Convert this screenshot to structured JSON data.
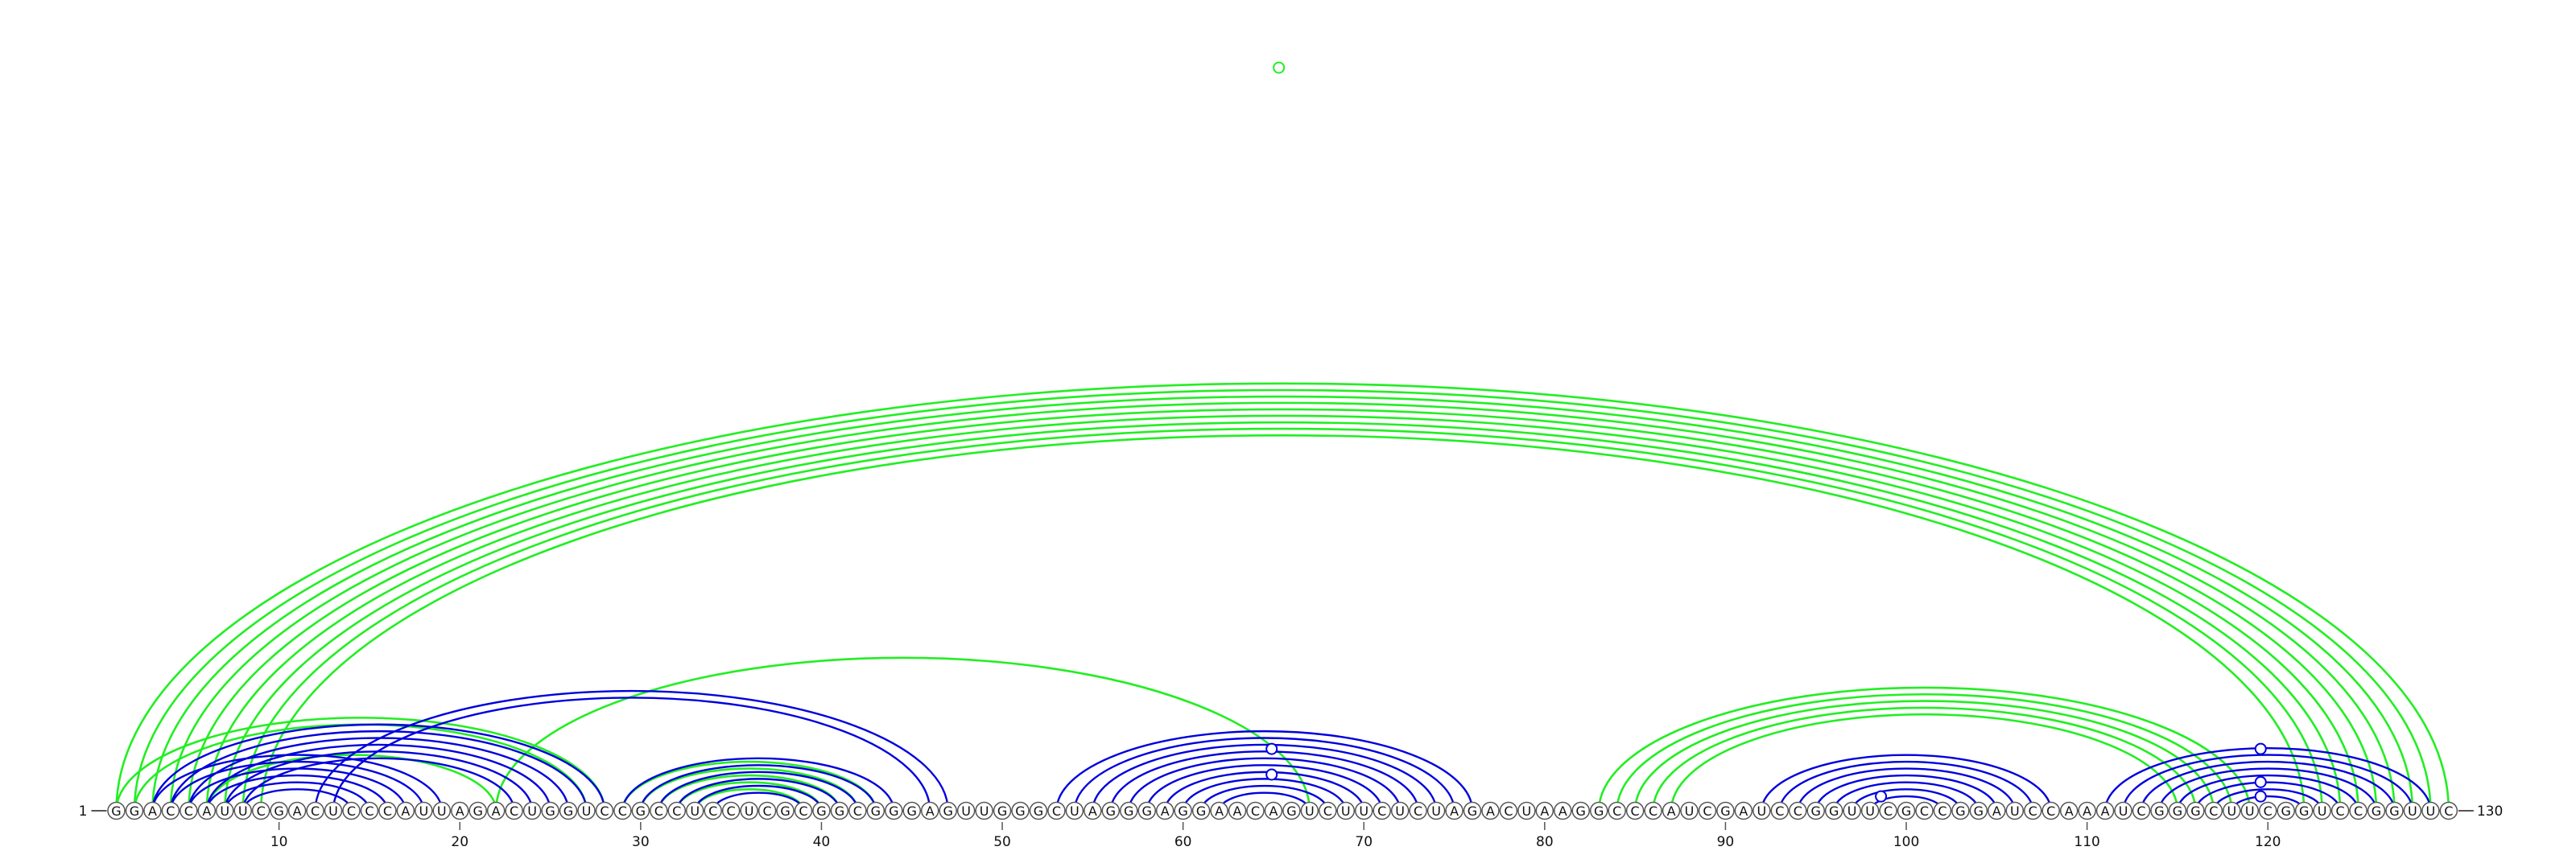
{
  "sequence": "GGACCAUUCGACUCCCAUUAGACUGGUCCGCCUCCUCGCGGCGGGAGUUGGGCUAGGGAGGAACAGUCUUCUCUAGACUAAGGCCCAUCGAUCCGGUUCGCCGGAUCCAAAUCGGGCUUCGGUCCGGUUC",
  "start_label": "1",
  "end_label": "130",
  "ticks": [
    "10",
    "20",
    "30",
    "40",
    "50",
    "60",
    "70",
    "80",
    "90",
    "100",
    "110",
    "120"
  ],
  "colors": {
    "blue": "#0000dd",
    "green": "#22ee22",
    "node_stroke": "#555555"
  },
  "arcs_blue": [
    [
      3,
      19
    ],
    [
      4,
      18
    ],
    [
      5,
      17
    ],
    [
      6,
      16
    ],
    [
      7,
      15
    ],
    [
      8,
      14
    ],
    [
      3,
      28
    ],
    [
      4,
      27
    ],
    [
      5,
      26
    ],
    [
      6,
      25
    ],
    [
      7,
      24
    ],
    [
      8,
      23
    ],
    [
      12,
      47
    ],
    [
      13,
      46
    ],
    [
      29,
      44
    ],
    [
      30,
      43
    ],
    [
      31,
      42
    ],
    [
      32,
      41
    ],
    [
      33,
      40
    ],
    [
      34,
      39
    ],
    [
      53,
      76
    ],
    [
      54,
      75
    ],
    [
      55,
      74
    ],
    [
      56,
      73
    ],
    [
      57,
      72
    ],
    [
      58,
      71
    ],
    [
      59,
      70
    ],
    [
      60,
      69
    ],
    [
      61,
      68
    ],
    [
      62,
      67
    ],
    [
      92,
      108
    ],
    [
      93,
      107
    ],
    [
      94,
      106
    ],
    [
      95,
      105
    ],
    [
      96,
      104
    ],
    [
      97,
      103
    ],
    [
      98,
      102
    ],
    [
      111,
      129
    ],
    [
      112,
      128
    ],
    [
      113,
      127
    ],
    [
      114,
      126
    ],
    [
      115,
      125
    ],
    [
      116,
      124
    ],
    [
      117,
      123
    ],
    [
      118,
      122
    ]
  ],
  "arcs_green": [
    [
      1,
      130
    ],
    [
      2,
      129
    ],
    [
      3,
      128
    ],
    [
      4,
      127
    ],
    [
      5,
      126
    ],
    [
      6,
      125
    ],
    [
      7,
      124
    ],
    [
      8,
      123
    ],
    [
      9,
      122
    ],
    [
      1,
      28
    ],
    [
      2,
      27
    ],
    [
      6,
      22
    ],
    [
      22,
      67
    ],
    [
      29,
      43
    ],
    [
      30,
      42
    ],
    [
      31,
      41
    ],
    [
      32,
      40
    ],
    [
      33,
      39
    ],
    [
      83,
      119
    ],
    [
      84,
      118
    ],
    [
      85,
      117
    ],
    [
      86,
      116
    ],
    [
      87,
      115
    ]
  ],
  "markers": [
    {
      "color": "green",
      "x": 65.3,
      "h": 0.985
    },
    {
      "color": "blue",
      "x": 64.9,
      "h": 0.082
    },
    {
      "color": "blue",
      "x": 64.9,
      "h": 0.048
    },
    {
      "color": "blue",
      "x": 98.6,
      "h": 0.019
    },
    {
      "color": "blue",
      "x": 119.6,
      "h": 0.082
    },
    {
      "color": "blue",
      "x": 119.6,
      "h": 0.038
    },
    {
      "color": "blue",
      "x": 119.6,
      "h": 0.019
    }
  ]
}
